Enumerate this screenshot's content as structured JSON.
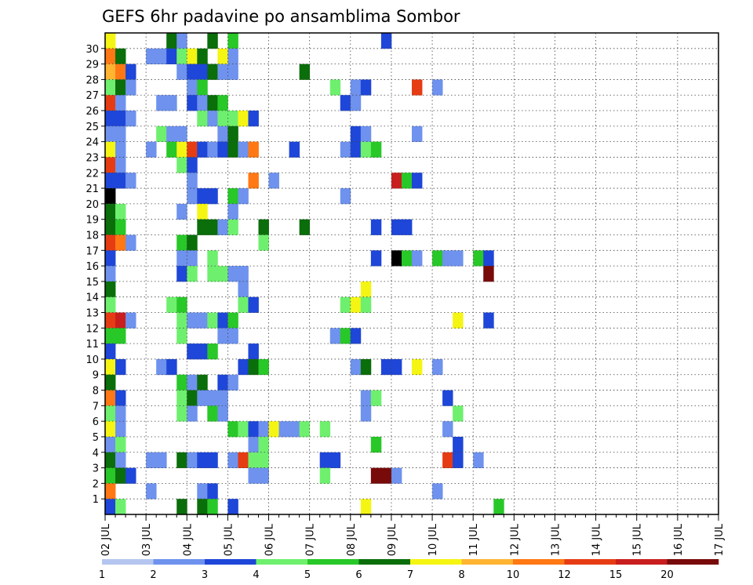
{
  "chart_data": {
    "type": "heatmap",
    "title": "GEFS 6hr padavine po ansamblima Sombor",
    "xlabel": "",
    "ylabel": "",
    "x_ticks": [
      "02 JUL",
      "03 JUL",
      "04 JUL",
      "05 JUL",
      "06 JUL",
      "07 JUL",
      "08 JUL",
      "09 JUL",
      "10 JUL",
      "11 JUL",
      "12 JUL",
      "13 JUL",
      "14 JUL",
      "15 JUL",
      "16 JUL",
      "17 JUL"
    ],
    "y_ticks": [
      1,
      2,
      3,
      4,
      5,
      6,
      7,
      8,
      9,
      10,
      11,
      12,
      13,
      14,
      15,
      16,
      17,
      18,
      19,
      20,
      21,
      22,
      23,
      24,
      25,
      26,
      27,
      28,
      29,
      30
    ],
    "ylim": [
      0,
      30
    ],
    "grid": true,
    "time_steps": 60,
    "steps_per_day": 4,
    "legend": {
      "placement": "bottom",
      "labels": [
        "1",
        "2",
        "3",
        "4",
        "5",
        "6",
        "7",
        "8",
        "10",
        "12",
        "15",
        "20"
      ],
      "colors": [
        "#b4c6f0",
        "#6e92ee",
        "#1e46d8",
        "#6ef06e",
        "#28c828",
        "#0a6e0a",
        "#f5f514",
        "#ffb432",
        "#ff7814",
        "#e63c14",
        "#c81e1e",
        "#780a0a"
      ]
    },
    "cells": [
      [
        0,
        30,
        6
      ],
      [
        6,
        30,
        5
      ],
      [
        7,
        30,
        1
      ],
      [
        10,
        30,
        5
      ],
      [
        12,
        30,
        4
      ],
      [
        27,
        30,
        2
      ],
      [
        0,
        29,
        8
      ],
      [
        1,
        29,
        5
      ],
      [
        4,
        29,
        1
      ],
      [
        5,
        29,
        1
      ],
      [
        6,
        29,
        2
      ],
      [
        7,
        29,
        3
      ],
      [
        8,
        29,
        6
      ],
      [
        9,
        29,
        5
      ],
      [
        11,
        29,
        6
      ],
      [
        12,
        29,
        1
      ],
      [
        0,
        28,
        6
      ],
      [
        0,
        28,
        7
      ],
      [
        1,
        28,
        8
      ],
      [
        2,
        28,
        2
      ],
      [
        7,
        28,
        1
      ],
      [
        8,
        28,
        2
      ],
      [
        9,
        28,
        2
      ],
      [
        10,
        28,
        5
      ],
      [
        11,
        28,
        1
      ],
      [
        12,
        28,
        1
      ],
      [
        19,
        28,
        5
      ],
      [
        0,
        27,
        3
      ],
      [
        1,
        27,
        5
      ],
      [
        2,
        27,
        1
      ],
      [
        8,
        27,
        1
      ],
      [
        9,
        27,
        4
      ],
      [
        22,
        27,
        3
      ],
      [
        24,
        27,
        1
      ],
      [
        25,
        27,
        2
      ],
      [
        30,
        27,
        9
      ],
      [
        32,
        27,
        1
      ],
      [
        0,
        26,
        9
      ],
      [
        1,
        26,
        1
      ],
      [
        5,
        26,
        1
      ],
      [
        6,
        26,
        1
      ],
      [
        8,
        26,
        2
      ],
      [
        9,
        26,
        1
      ],
      [
        10,
        26,
        5
      ],
      [
        11,
        26,
        4
      ],
      [
        23,
        26,
        2
      ],
      [
        24,
        26,
        1
      ],
      [
        0,
        25,
        2
      ],
      [
        1,
        25,
        2
      ],
      [
        2,
        25,
        1
      ],
      [
        9,
        25,
        3
      ],
      [
        10,
        25,
        1
      ],
      [
        11,
        25,
        3
      ],
      [
        12,
        25,
        3
      ],
      [
        13,
        25,
        6
      ],
      [
        14,
        25,
        2
      ],
      [
        0,
        24,
        1
      ],
      [
        1,
        24,
        1
      ],
      [
        5,
        24,
        3
      ],
      [
        6,
        24,
        1
      ],
      [
        7,
        24,
        1
      ],
      [
        11,
        24,
        1
      ],
      [
        12,
        24,
        5
      ],
      [
        24,
        24,
        2
      ],
      [
        25,
        24,
        1
      ],
      [
        30,
        24,
        1
      ],
      [
        0,
        23,
        6
      ],
      [
        1,
        23,
        1
      ],
      [
        4,
        23,
        1
      ],
      [
        6,
        23,
        4
      ],
      [
        7,
        23,
        6
      ],
      [
        8,
        23,
        9
      ],
      [
        9,
        23,
        2
      ],
      [
        10,
        23,
        1
      ],
      [
        11,
        23,
        2
      ],
      [
        12,
        23,
        5
      ],
      [
        13,
        23,
        1
      ],
      [
        14,
        23,
        8
      ],
      [
        18,
        23,
        2
      ],
      [
        23,
        23,
        1
      ],
      [
        24,
        23,
        2
      ],
      [
        25,
        23,
        3
      ],
      [
        26,
        23,
        4
      ],
      [
        0,
        22,
        9
      ],
      [
        1,
        22,
        1
      ],
      [
        7,
        22,
        3
      ],
      [
        8,
        22,
        2
      ],
      [
        0,
        21,
        2
      ],
      [
        1,
        21,
        2
      ],
      [
        2,
        21,
        1
      ],
      [
        8,
        21,
        1
      ],
      [
        14,
        21,
        8
      ],
      [
        16,
        21,
        1
      ],
      [
        28,
        21,
        10
      ],
      [
        29,
        21,
        4
      ],
      [
        30,
        21,
        2
      ],
      [
        0,
        20,
        12
      ],
      [
        8,
        20,
        1
      ],
      [
        9,
        20,
        2
      ],
      [
        10,
        20,
        2
      ],
      [
        12,
        20,
        4
      ],
      [
        13,
        20,
        1
      ],
      [
        23,
        20,
        1
      ],
      [
        0,
        19,
        5
      ],
      [
        1,
        19,
        3
      ],
      [
        7,
        19,
        1
      ],
      [
        9,
        19,
        6
      ],
      [
        12,
        19,
        1
      ],
      [
        0,
        18,
        5
      ],
      [
        1,
        18,
        4
      ],
      [
        9,
        18,
        5
      ],
      [
        10,
        18,
        5
      ],
      [
        11,
        18,
        1
      ],
      [
        12,
        18,
        3
      ],
      [
        15,
        18,
        5
      ],
      [
        19,
        18,
        5
      ],
      [
        26,
        18,
        2
      ],
      [
        28,
        18,
        2
      ],
      [
        29,
        18,
        2
      ],
      [
        0,
        17,
        9
      ],
      [
        1,
        17,
        8
      ],
      [
        2,
        17,
        1
      ],
      [
        7,
        17,
        4
      ],
      [
        8,
        17,
        5
      ],
      [
        15,
        17,
        3
      ],
      [
        0,
        16,
        2
      ],
      [
        7,
        16,
        1
      ],
      [
        8,
        16,
        1
      ],
      [
        10,
        16,
        3
      ],
      [
        26,
        16,
        2
      ],
      [
        28,
        16,
        12
      ],
      [
        29,
        16,
        4
      ],
      [
        30,
        16,
        1
      ],
      [
        32,
        16,
        4
      ],
      [
        33,
        16,
        1
      ],
      [
        34,
        16,
        1
      ],
      [
        36,
        16,
        4
      ],
      [
        37,
        16,
        2
      ],
      [
        0,
        15,
        1
      ],
      [
        7,
        15,
        2
      ],
      [
        8,
        15,
        3
      ],
      [
        10,
        15,
        3
      ],
      [
        11,
        15,
        3
      ],
      [
        12,
        15,
        1
      ],
      [
        13,
        15,
        1
      ],
      [
        37,
        15,
        11
      ],
      [
        0,
        14,
        5
      ],
      [
        13,
        14,
        1
      ],
      [
        25,
        14,
        6
      ],
      [
        0,
        13,
        3
      ],
      [
        6,
        13,
        3
      ],
      [
        7,
        13,
        4
      ],
      [
        13,
        13,
        3
      ],
      [
        14,
        13,
        2
      ],
      [
        23,
        13,
        3
      ],
      [
        24,
        13,
        6
      ],
      [
        25,
        13,
        3
      ],
      [
        0,
        12,
        9
      ],
      [
        1,
        12,
        10
      ],
      [
        2,
        12,
        1
      ],
      [
        7,
        12,
        3
      ],
      [
        8,
        12,
        1
      ],
      [
        9,
        12,
        1
      ],
      [
        10,
        12,
        3
      ],
      [
        11,
        12,
        2
      ],
      [
        12,
        12,
        4
      ],
      [
        34,
        12,
        6
      ],
      [
        37,
        12,
        2
      ],
      [
        0,
        11,
        4
      ],
      [
        1,
        11,
        4
      ],
      [
        7,
        11,
        3
      ],
      [
        11,
        11,
        1
      ],
      [
        12,
        11,
        1
      ],
      [
        22,
        11,
        1
      ],
      [
        23,
        11,
        4
      ],
      [
        24,
        11,
        2
      ],
      [
        0,
        10,
        2
      ],
      [
        8,
        10,
        2
      ],
      [
        9,
        10,
        2
      ],
      [
        10,
        10,
        4
      ],
      [
        14,
        10,
        2
      ],
      [
        0,
        9,
        6
      ],
      [
        1,
        9,
        2
      ],
      [
        5,
        9,
        1
      ],
      [
        6,
        9,
        2
      ],
      [
        13,
        9,
        2
      ],
      [
        14,
        9,
        5
      ],
      [
        15,
        9,
        4
      ],
      [
        24,
        9,
        1
      ],
      [
        25,
        9,
        5
      ],
      [
        27,
        9,
        2
      ],
      [
        28,
        9,
        2
      ],
      [
        30,
        9,
        6
      ],
      [
        32,
        9,
        1
      ],
      [
        0,
        8,
        5
      ],
      [
        7,
        8,
        4
      ],
      [
        8,
        8,
        1
      ],
      [
        9,
        8,
        5
      ],
      [
        11,
        8,
        2
      ],
      [
        12,
        8,
        1
      ],
      [
        0,
        7,
        8
      ],
      [
        1,
        7,
        2
      ],
      [
        7,
        7,
        3
      ],
      [
        8,
        7,
        5
      ],
      [
        9,
        7,
        1
      ],
      [
        10,
        7,
        1
      ],
      [
        11,
        7,
        1
      ],
      [
        25,
        7,
        1
      ],
      [
        26,
        7,
        3
      ],
      [
        33,
        7,
        2
      ],
      [
        0,
        6,
        3
      ],
      [
        1,
        6,
        1
      ],
      [
        7,
        6,
        3
      ],
      [
        8,
        6,
        1
      ],
      [
        10,
        6,
        4
      ],
      [
        11,
        6,
        1
      ],
      [
        25,
        6,
        1
      ],
      [
        34,
        6,
        3
      ],
      [
        0,
        5,
        6
      ],
      [
        1,
        5,
        1
      ],
      [
        12,
        5,
        4
      ],
      [
        13,
        5,
        3
      ],
      [
        14,
        5,
        2
      ],
      [
        15,
        5,
        1
      ],
      [
        16,
        5,
        6
      ],
      [
        17,
        5,
        1
      ],
      [
        18,
        5,
        1
      ],
      [
        19,
        5,
        3
      ],
      [
        21,
        5,
        3
      ],
      [
        33,
        5,
        1
      ],
      [
        0,
        4,
        1
      ],
      [
        1,
        4,
        3
      ],
      [
        14,
        4,
        1
      ],
      [
        15,
        4,
        3
      ],
      [
        26,
        4,
        4
      ],
      [
        34,
        4,
        2
      ],
      [
        0,
        3,
        5
      ],
      [
        1,
        3,
        1
      ],
      [
        4,
        3,
        1
      ],
      [
        5,
        3,
        1
      ],
      [
        7,
        3,
        5
      ],
      [
        8,
        3,
        1
      ],
      [
        9,
        3,
        2
      ],
      [
        10,
        3,
        2
      ],
      [
        12,
        3,
        1
      ],
      [
        13,
        3,
        9
      ],
      [
        14,
        3,
        3
      ],
      [
        15,
        3,
        3
      ],
      [
        21,
        3,
        2
      ],
      [
        22,
        3,
        2
      ],
      [
        33,
        3,
        9
      ],
      [
        34,
        3,
        2
      ],
      [
        36,
        3,
        1
      ],
      [
        0,
        2,
        4
      ],
      [
        1,
        2,
        5
      ],
      [
        2,
        2,
        2
      ],
      [
        14,
        2,
        1
      ],
      [
        15,
        2,
        1
      ],
      [
        21,
        2,
        3
      ],
      [
        26,
        2,
        11
      ],
      [
        27,
        2,
        11
      ],
      [
        28,
        2,
        1
      ],
      [
        0,
        1,
        8
      ],
      [
        4,
        1,
        1
      ],
      [
        9,
        1,
        1
      ],
      [
        10,
        1,
        2
      ],
      [
        32,
        1,
        1
      ],
      [
        0,
        0,
        2
      ],
      [
        1,
        0,
        3
      ],
      [
        7,
        0,
        5
      ],
      [
        9,
        0,
        5
      ],
      [
        10,
        0,
        4
      ],
      [
        12,
        0,
        2
      ],
      [
        25,
        0,
        6
      ],
      [
        38,
        0,
        4
      ]
    ]
  }
}
